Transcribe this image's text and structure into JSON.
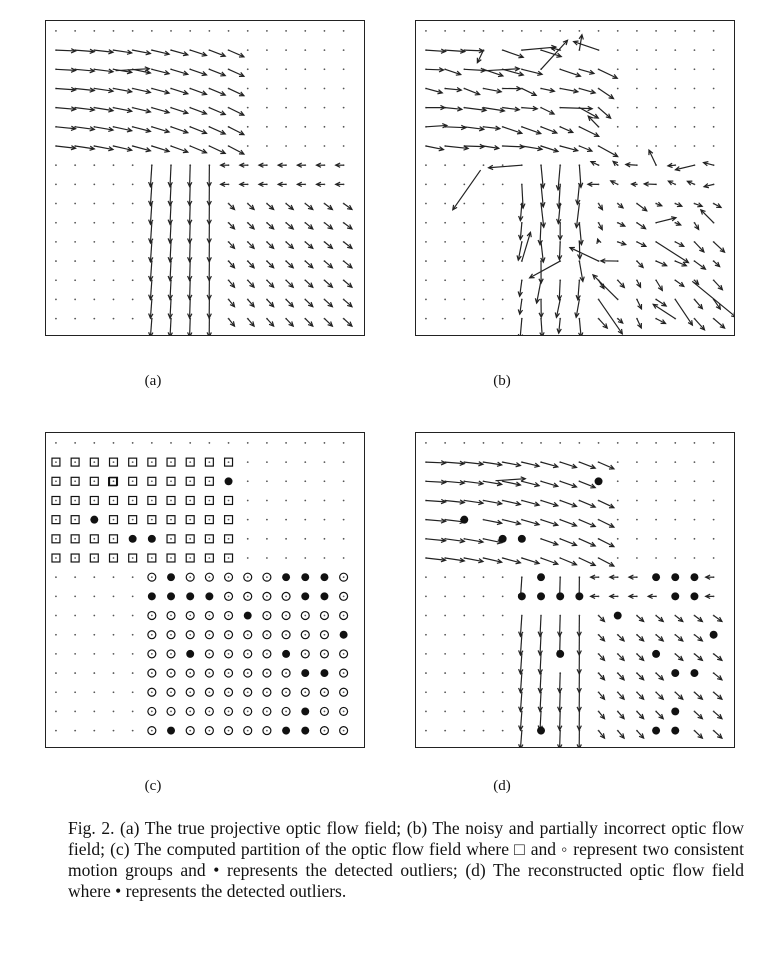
{
  "figure": {
    "panels": [
      {
        "id": "a",
        "label": "(a)",
        "content": "true projective optic flow field (vector arrows on a dotted grid)"
      },
      {
        "id": "b",
        "label": "(b)",
        "content": "noisy and partially incorrect optic flow field"
      },
      {
        "id": "c",
        "label": "(c)",
        "content": "computed partition: squares, circles, filled dots"
      },
      {
        "id": "d",
        "label": "(d)",
        "content": "reconstructed optic flow field with filled dots marking outliers"
      }
    ],
    "caption": "Fig. 2. (a) The true projective optic flow field; (b) The noisy and partially incorrect optic flow field; (c) The computed partition of the optic flow field where □ and ◦ represent two consistent motion groups and • represents the detected outliers; (d) The reconstructed optic flow field where • represents the detected outliers."
  },
  "colors": {
    "ink": "#222222",
    "dot": "#555555",
    "background": "#ffffff"
  }
}
